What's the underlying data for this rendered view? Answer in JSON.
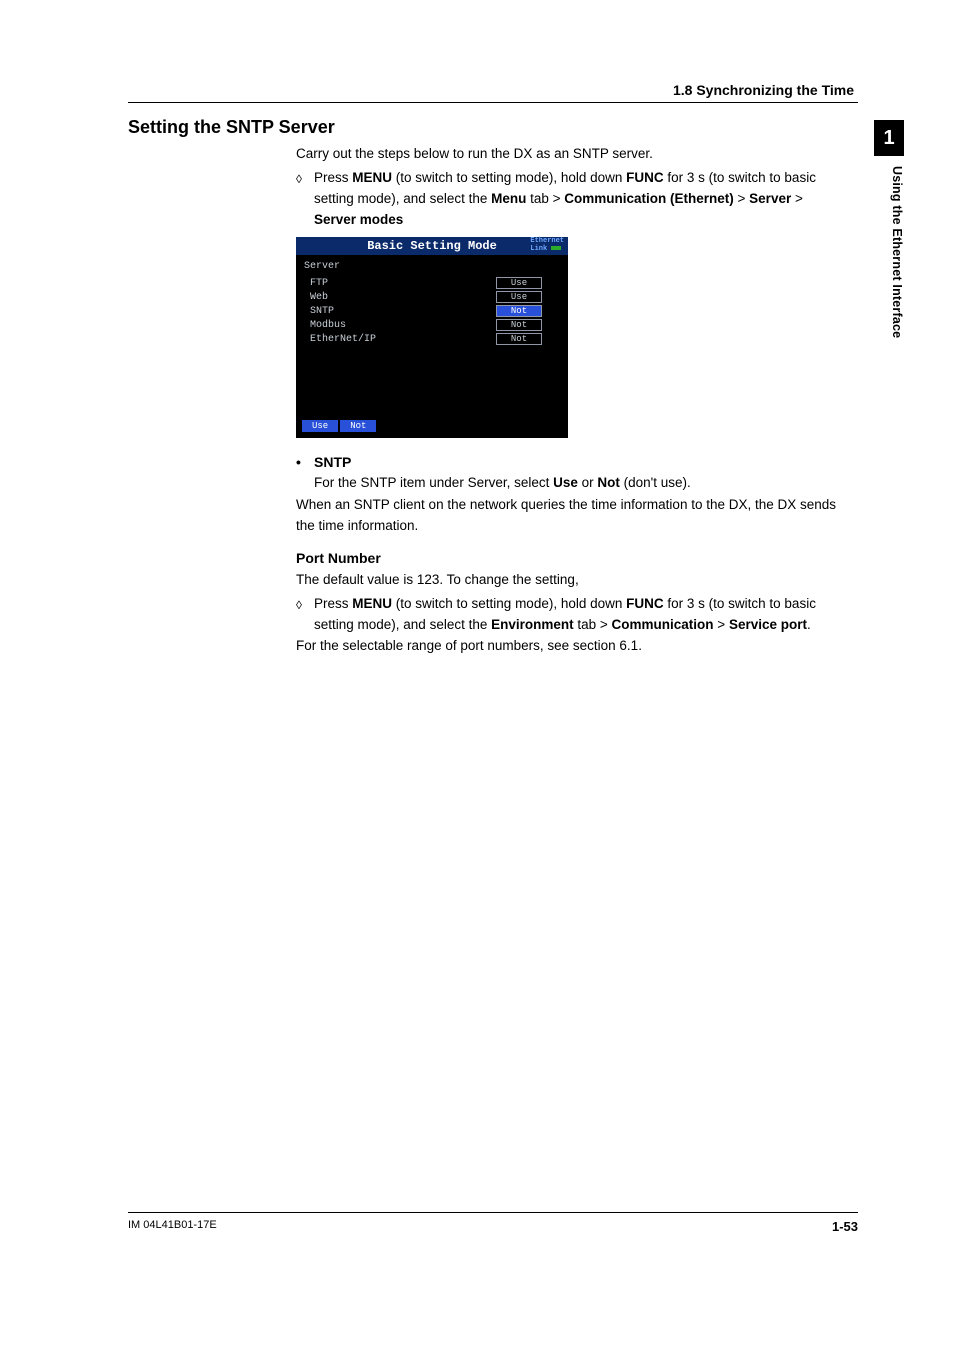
{
  "header": {
    "section_ref": "1.8  Synchronizing the Time"
  },
  "sidetab": {
    "chapter_number": "1",
    "chapter_title": "Using the Ethernet Interface"
  },
  "title": "Setting the SNTP Server",
  "intro": "Carry out the steps below to run the DX as an SNTP server.",
  "step1": {
    "p1a": "Press ",
    "menu": "MENU",
    "p1b": " (to switch to setting mode), hold down ",
    "func": "FUNC",
    "p1c": " for 3 s (to switch to basic setting mode), and select the ",
    "tab": "Menu",
    "p1d": " tab > ",
    "path1": "Communication (Ethernet)",
    "gt1": " > ",
    "path2": "Server",
    "gt2": " > ",
    "path3": "Server modes"
  },
  "device": {
    "title": "Basic Setting Mode",
    "eth1": "Ethernet",
    "eth2": "Link",
    "heading": "Server",
    "rows": [
      {
        "label": "FTP",
        "value": "Use",
        "sel": false
      },
      {
        "label": "Web",
        "value": "Use",
        "sel": false
      },
      {
        "label": "SNTP",
        "value": "Not",
        "sel": true
      },
      {
        "label": "Modbus",
        "value": "Not",
        "sel": false
      },
      {
        "label": "EtherNet/IP",
        "value": "Not",
        "sel": false
      }
    ],
    "btn_use": "Use",
    "btn_not": "Not"
  },
  "sntp": {
    "heading": "SNTP",
    "line1a": "For the SNTP item under Server, select ",
    "use": "Use",
    "or": " or ",
    "not": "Not",
    "line1b": " (don't use).",
    "para": "When an SNTP client on the network queries the time information to the DX, the DX sends the time information."
  },
  "portnum": {
    "heading": "Port Number",
    "line1": "The default value is 123. To change the setting,",
    "p1a": "Press ",
    "menu": "MENU",
    "p1b": " (to switch to setting mode), hold down ",
    "func": "FUNC",
    "p1c": " for 3 s (to switch to basic setting mode), and select the ",
    "tab": "Environment",
    "p1d": " tab > ",
    "path1": "Communication",
    "gt1": " > ",
    "path2": "Service port",
    "period": ".",
    "after": "For the selectable range of port numbers, see section 6.1."
  },
  "footer": {
    "doc_id": "IM 04L41B01-17E",
    "page": "1-53"
  }
}
